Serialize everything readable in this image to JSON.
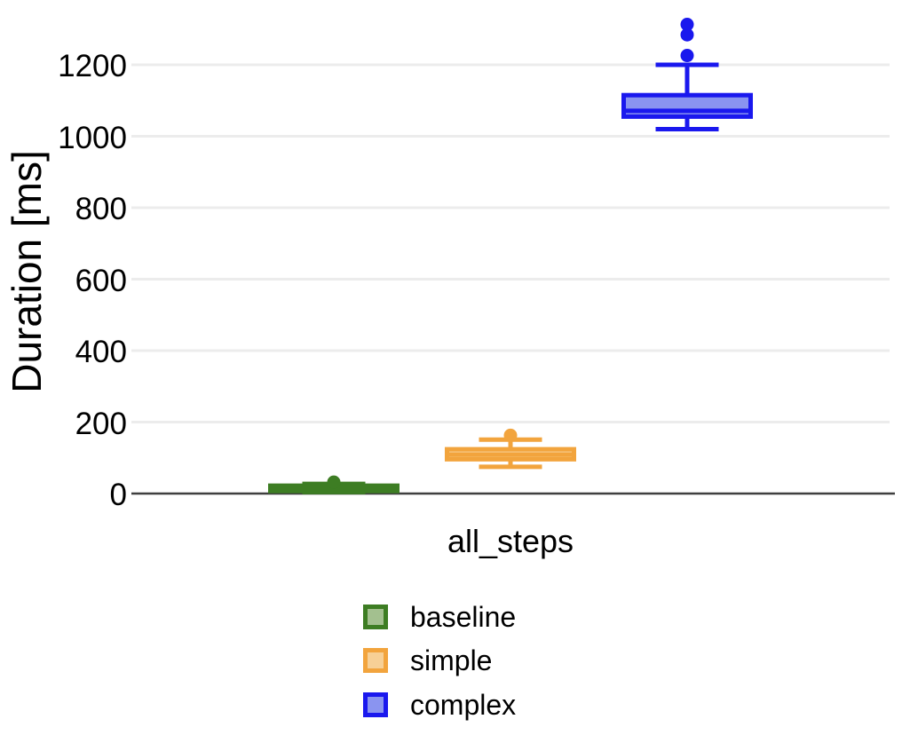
{
  "chart_data": {
    "type": "boxplot",
    "title": "",
    "ylabel": "Duration [ms]",
    "xlabel": "",
    "categories": [
      "all_steps"
    ],
    "yticks": [
      0,
      200,
      400,
      600,
      800,
      1000,
      1200
    ],
    "ylim": [
      0,
      1380
    ],
    "grid": "horizontal-gridlines-only",
    "legend_position": "bottom-center",
    "unit": "ms",
    "series": [
      {
        "name": "baseline",
        "color": "#3D7D23",
        "fill_color": "#A3C08F",
        "stats": {
          "whisker_low": 4,
          "q1": 7,
          "median": 15,
          "q3": 22,
          "whisker_high": 27,
          "outliers": [
            32
          ]
        }
      },
      {
        "name": "simple",
        "color": "#F2A43D",
        "fill_color": "#F7D096",
        "stats": {
          "whisker_low": 75,
          "q1": 96,
          "median": 109,
          "q3": 124,
          "whisker_high": 151,
          "outliers": [
            163
          ]
        }
      },
      {
        "name": "complex",
        "color": "#1A18EE",
        "fill_color": "#8A94F0",
        "stats": {
          "whisker_low": 1020,
          "q1": 1055,
          "median": 1071,
          "q3": 1115,
          "whisker_high": 1200,
          "outliers": [
            1226,
            1284,
            1313
          ]
        }
      }
    ],
    "colors": {
      "grid": "#ECECEC",
      "axis": "#3F3F3F",
      "text": "#000000",
      "background": "#FFFFFF"
    }
  }
}
